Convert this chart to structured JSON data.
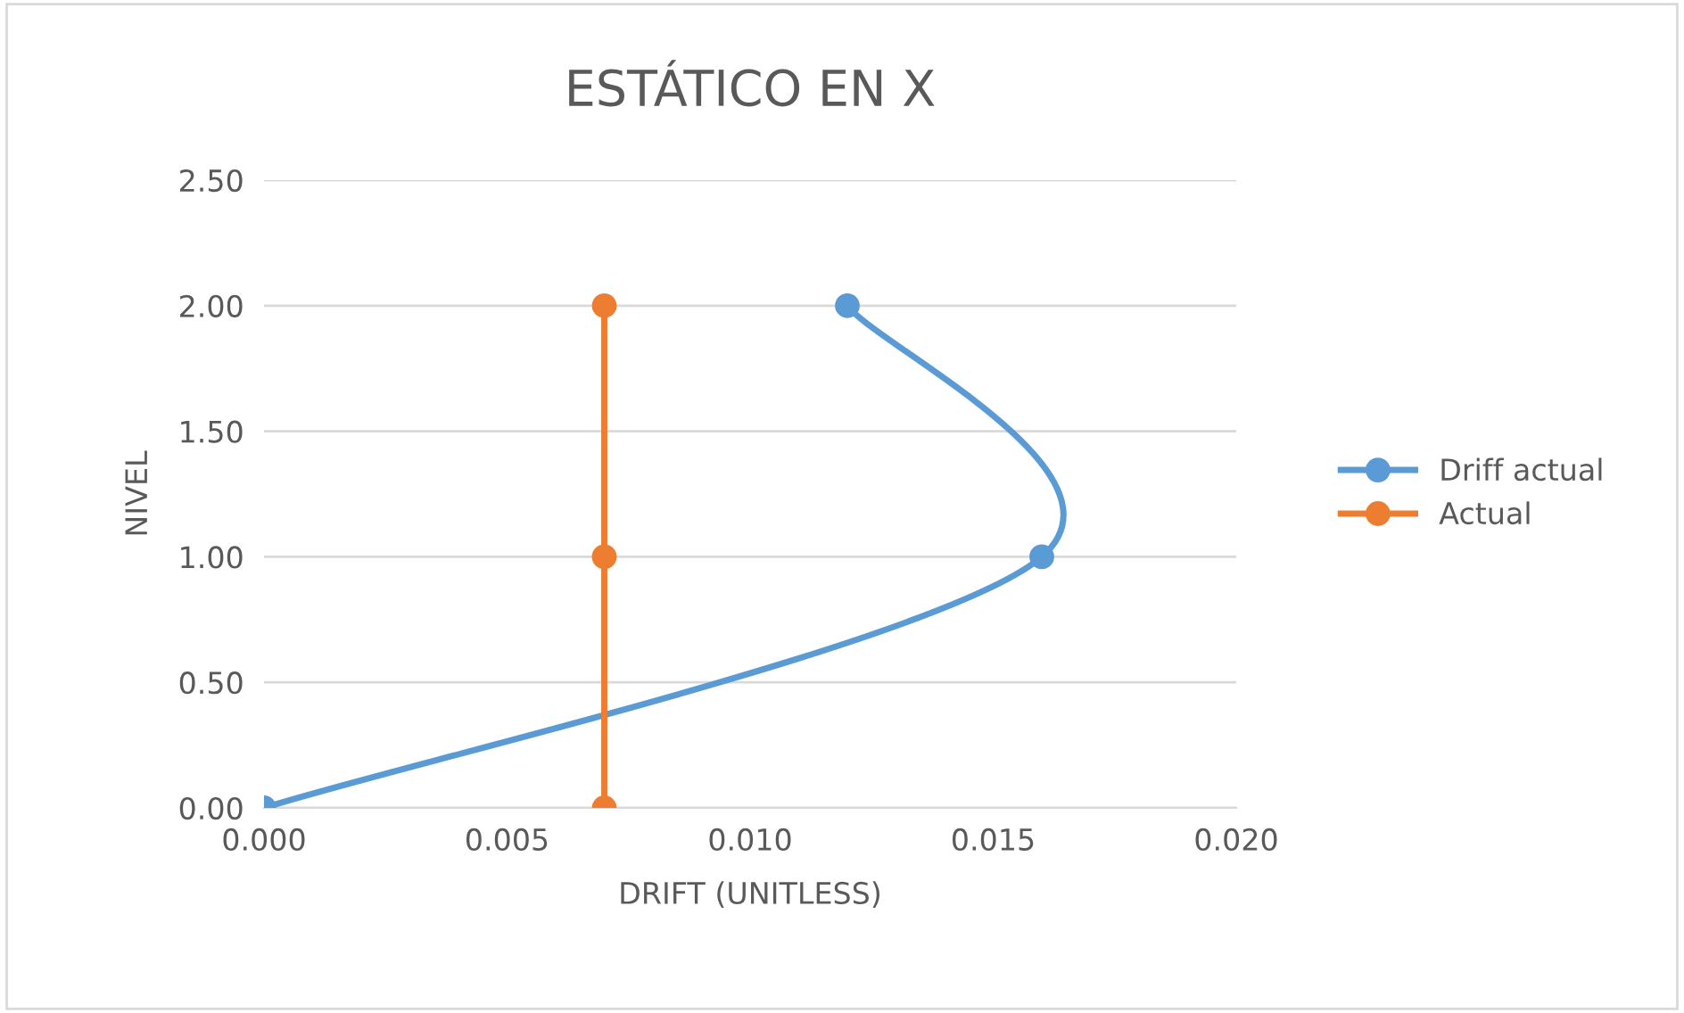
{
  "chart_data": {
    "type": "line",
    "title": "ESTÁTICO EN X",
    "xlabel": "DRIFT (UNITLESS)",
    "ylabel": "NIVEL",
    "series": [
      {
        "name": "Driff actual",
        "color": "#5b9bd5",
        "x": [
          0.0,
          0.016,
          0.012
        ],
        "values": [
          0.0,
          1.0,
          2.0
        ]
      },
      {
        "name": "Actual",
        "color": "#ed7d31",
        "x": [
          0.007,
          0.007,
          0.007
        ],
        "values": [
          0.0,
          1.0,
          2.0
        ]
      }
    ],
    "xlim": [
      0.0,
      0.02
    ],
    "xticks": [
      {
        "value": 0,
        "label": "0.000"
      },
      {
        "value": 0.005,
        "label": "0.005"
      },
      {
        "value": 0.01,
        "label": "0.010"
      },
      {
        "value": 0.015,
        "label": "0.015"
      },
      {
        "value": 0.02,
        "label": "0.020"
      }
    ],
    "ylim": [
      0,
      2.5
    ],
    "yticks": [
      {
        "value": 0,
        "label": "0.00"
      },
      {
        "value": 0.5,
        "label": "0.50"
      },
      {
        "value": 1,
        "label": "1.00"
      },
      {
        "value": 1.5,
        "label": "1.50"
      },
      {
        "value": 2,
        "label": "2.00"
      },
      {
        "value": 2.5,
        "label": "2.50"
      }
    ],
    "grid": "y",
    "legend": "right",
    "marker": "circle",
    "line_style": "solid"
  }
}
